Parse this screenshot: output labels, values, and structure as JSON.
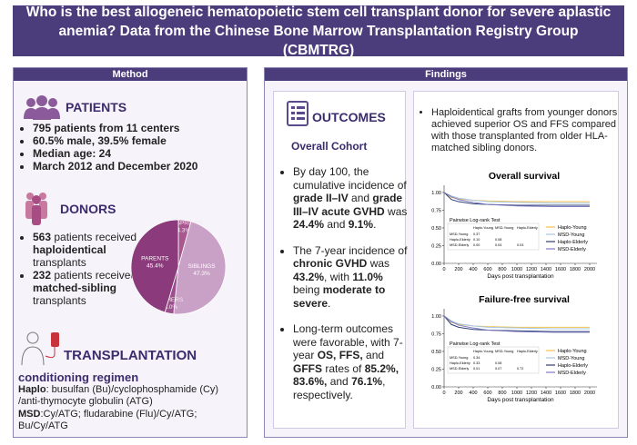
{
  "header": {
    "title": "Who is the best allogeneic hematopoietic stem cell transplant donor for severe aplastic anemia? Data from the Chinese Bone Marrow Transplantation Registry Group (CBMTRG)"
  },
  "method": {
    "heading": "Method",
    "patients": {
      "heading": "PATIENTS",
      "items": [
        "795  patients from 11 centers",
        "60.5% male, 39.5% female",
        "Median age: 24",
        "March 2012 and December 2020"
      ]
    },
    "donors": {
      "heading": "DONORS",
      "items": [
        [
          "563",
          " patients received ",
          "haploidentical",
          " transplants"
        ],
        [
          "232",
          " patients received ",
          "matched-sibling",
          " transplants"
        ]
      ]
    },
    "transplantation": {
      "heading": "TRANSPLANTATION",
      "subheading": "conditioning regimen",
      "lines": [
        [
          "Haplo",
          ": busulfan (Bu)/cyclophosphamide (Cy) /anti-thymocyte globulin (ATG)"
        ],
        [
          "MSD",
          ":Cy/ATG; fludarabine (Flu)/Cy/ATG; Bu/Cy/ATG"
        ]
      ]
    }
  },
  "findings": {
    "heading": "Findings",
    "outcomes": {
      "heading": "OUTCOMES",
      "subheading": "Overall Cohort",
      "items": [
        [
          "By day 100, the cumulative incidence of ",
          "grade II–IV",
          " and ",
          "grade III–IV acute GVHD",
          " was ",
          "24.4%",
          " and ",
          "9.1%",
          "."
        ],
        [
          "The 7-year incidence of ",
          "chronic GVHD",
          " was ",
          "43.2%",
          ", with ",
          "11.0%",
          " being ",
          "moderate to severe",
          "."
        ],
        [
          "Long-term outcomes were favorable, with 7-year ",
          "OS, FFS,",
          " and ",
          "GFFS",
          " rates of ",
          "85.2%, 83.6%,",
          " and ",
          "76.1%",
          ", respectively."
        ]
      ]
    },
    "summary": "Haploidentical grafts from younger donors achieved superior OS and FFS compared with those transplanted from older HLA-matched sibling donors."
  },
  "chart_data": [
    {
      "type": "pie",
      "categories": [
        "OFFSPRINGS",
        "SIBLINGS",
        "OTHERS",
        "PARENTS"
      ],
      "values": [
        4.3,
        47.3,
        3.0,
        45.4
      ],
      "value_labels": [
        "4.3%",
        "47.3%",
        "3.0%",
        "45.4%"
      ],
      "colors": [
        "#a9578f",
        "#c9a0c6",
        "#9c4f8c",
        "#8b3b7b"
      ]
    },
    {
      "type": "line",
      "title": "Overall survival",
      "xlabel": "Days post transplantation",
      "x": [
        0,
        100,
        200,
        400,
        600,
        1000,
        1500,
        2000
      ],
      "series": [
        {
          "name": "Haplo-Young",
          "color": "#f2c14e",
          "values": [
            1,
            0.93,
            0.91,
            0.89,
            0.88,
            0.87,
            0.87,
            0.87
          ]
        },
        {
          "name": "MSD-Young",
          "color": "#a7c8e6",
          "values": [
            1,
            0.95,
            0.92,
            0.89,
            0.87,
            0.86,
            0.85,
            0.85
          ]
        },
        {
          "name": "Haplo-Elderly",
          "color": "#2d3f74",
          "values": [
            1,
            0.9,
            0.87,
            0.84,
            0.83,
            0.82,
            0.82,
            0.82
          ]
        },
        {
          "name": "MSD-Elderly",
          "color": "#7e7bc1",
          "values": [
            1,
            0.94,
            0.9,
            0.86,
            0.83,
            0.81,
            0.8,
            0.8
          ]
        }
      ],
      "xlim": [
        0,
        2100
      ],
      "xticks": [
        0,
        200,
        400,
        600,
        800,
        1000,
        1200,
        1400,
        1600,
        1800,
        2000
      ],
      "ylim": [
        0,
        1.05
      ],
      "yticks": [
        {
          "value": 0,
          "label": "0.00"
        },
        {
          "value": 0.25,
          "label": "0.25"
        },
        {
          "value": 0.5,
          "label": "0.50"
        },
        {
          "value": 0.75,
          "label": "0.75"
        },
        {
          "value": 1,
          "label": "1.00"
        }
      ],
      "legend": "right",
      "table": {
        "title": "Pairwise Log-rank Test",
        "columns": [
          "Haplo-Young",
          "MSD-Young",
          "Haplo-Elderly"
        ],
        "rows": [
          {
            "name": "MSD-Young",
            "cells": [
              "0.37"
            ]
          },
          {
            "name": "Haplo-Elderly",
            "cells": [
              "0.10",
              "0.08"
            ]
          },
          {
            "name": "MSD-Elderly",
            "cells": [
              "0.00",
              "0.04",
              "0.03"
            ]
          }
        ]
      }
    },
    {
      "type": "line",
      "title": "Failure-free survival",
      "xlabel": "Days post transplantation",
      "x": [
        0,
        100,
        200,
        400,
        600,
        1000,
        1500,
        2000
      ],
      "series": [
        {
          "name": "Haplo-Young",
          "color": "#f2c14e",
          "values": [
            1,
            0.91,
            0.88,
            0.86,
            0.85,
            0.84,
            0.84,
            0.84
          ]
        },
        {
          "name": "MSD-Young",
          "color": "#a7c8e6",
          "values": [
            1,
            0.93,
            0.89,
            0.86,
            0.84,
            0.83,
            0.82,
            0.82
          ]
        },
        {
          "name": "Haplo-Elderly",
          "color": "#2d3f74",
          "values": [
            1,
            0.88,
            0.84,
            0.81,
            0.8,
            0.79,
            0.78,
            0.78
          ]
        },
        {
          "name": "MSD-Elderly",
          "color": "#7e7bc1",
          "values": [
            1,
            0.92,
            0.87,
            0.83,
            0.8,
            0.78,
            0.77,
            0.77
          ]
        }
      ],
      "xlim": [
        0,
        2100
      ],
      "xticks": [
        0,
        200,
        400,
        600,
        800,
        1000,
        1200,
        1400,
        1600,
        1800,
        2000
      ],
      "ylim": [
        0,
        1.05
      ],
      "yticks": [
        {
          "value": 0,
          "label": "0.00"
        },
        {
          "value": 0.25,
          "label": "0.25"
        },
        {
          "value": 0.5,
          "label": "0.50"
        },
        {
          "value": 0.75,
          "label": "0.75"
        },
        {
          "value": 1,
          "label": "1.00"
        }
      ],
      "legend": "right",
      "table": {
        "title": "Pairwise Log-rank Test",
        "columns": [
          "Haplo-Young",
          "MSD-Young",
          "Haplo-Elderly"
        ],
        "rows": [
          {
            "name": "MSD-Young",
            "cells": [
              "0.34"
            ]
          },
          {
            "name": "Haplo-Elderly",
            "cells": [
              "0.33",
              "0.08"
            ]
          },
          {
            "name": "MSD-Elderly",
            "cells": [
              "0.01",
              "0.07",
              "0.72"
            ]
          }
        ]
      }
    }
  ]
}
